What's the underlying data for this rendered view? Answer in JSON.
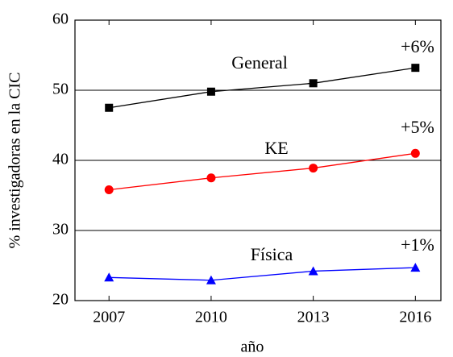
{
  "chart_data": {
    "type": "line",
    "x_label": "año",
    "y_label": "% investigadoras en la CIC",
    "x": [
      2007,
      2010,
      2013,
      2016
    ],
    "series": [
      {
        "name": "General",
        "color": "#000000",
        "marker": "square",
        "values": [
          47.5,
          49.8,
          51,
          53.2
        ]
      },
      {
        "name": "KE",
        "color": "#ff0000",
        "marker": "circle",
        "values": [
          35.8,
          37.5,
          38.9,
          41
        ]
      },
      {
        "name": "Física",
        "color": "#0000ff",
        "marker": "triangle",
        "values": [
          23.3,
          22.9,
          24.2,
          24.7
        ]
      }
    ],
    "annotations": [
      "+6%",
      "+5%",
      "+1%"
    ],
    "xlim": [
      2006,
      2016.75
    ],
    "xticks": [
      2007,
      2010,
      2013,
      2016
    ],
    "ylim": [
      20,
      60
    ],
    "yticks": [
      20,
      30,
      40,
      50,
      60
    ],
    "grid": true
  }
}
